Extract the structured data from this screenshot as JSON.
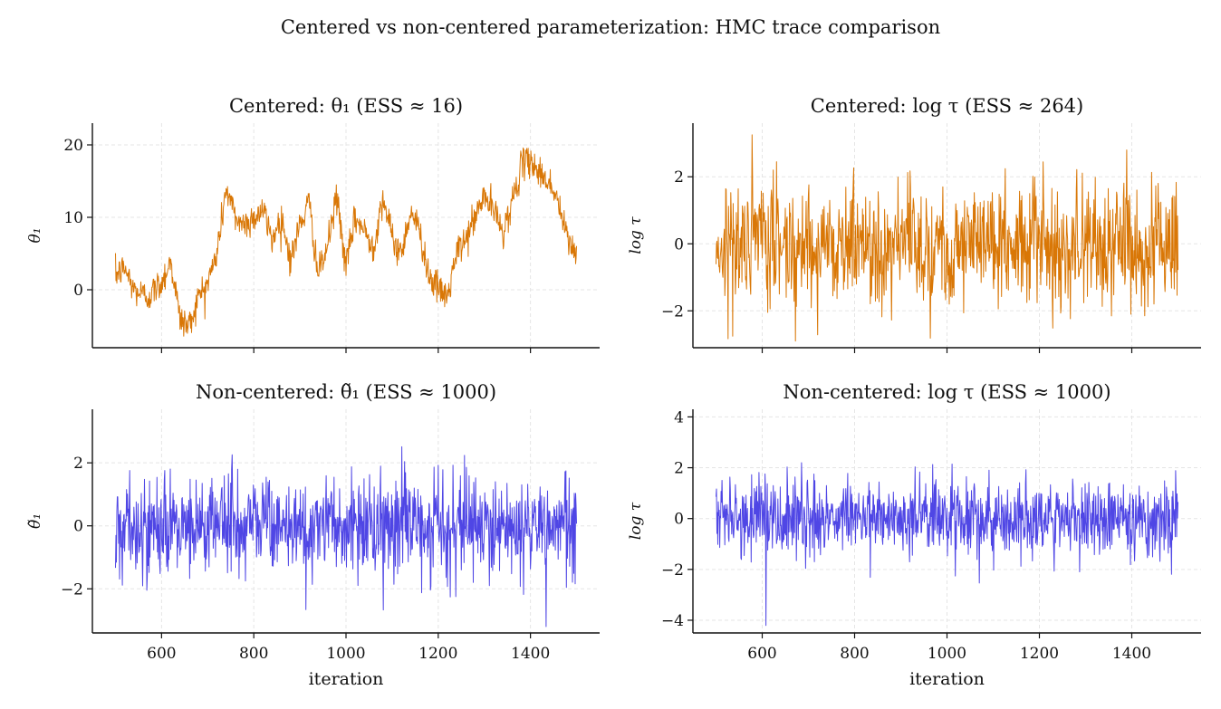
{
  "suptitle": "Centered vs non-centered parameterization: HMC trace comparison",
  "colors": {
    "centered": "#d97706",
    "noncentered": "#4f46e5"
  },
  "chart_data": [
    {
      "type": "line",
      "panel": "top-left",
      "title": "Centered: θ₁   (ESS ≈ 16)",
      "ylabel": "θ₁",
      "xlabel": "",
      "series": [
        {
          "color_key": "centered"
        }
      ],
      "x_range": [
        500,
        1500
      ],
      "xlim": [
        450,
        1550
      ],
      "ylim": [
        -8,
        23
      ],
      "yticks": [
        0,
        10,
        20
      ],
      "ytick_labels": [
        "0",
        "10",
        "20"
      ],
      "xticks": [
        600,
        800,
        1000,
        1200,
        1400
      ],
      "show_xtick_labels": false,
      "grid": true,
      "trace_style": "random-walk",
      "trace_anchors": [
        [
          500,
          2
        ],
        [
          520,
          3
        ],
        [
          540,
          0
        ],
        [
          570,
          -1
        ],
        [
          600,
          1
        ],
        [
          620,
          4
        ],
        [
          640,
          -4
        ],
        [
          660,
          -5
        ],
        [
          680,
          -1
        ],
        [
          700,
          1
        ],
        [
          720,
          5
        ],
        [
          740,
          14
        ],
        [
          760,
          10
        ],
        [
          780,
          9
        ],
        [
          800,
          10
        ],
        [
          820,
          11
        ],
        [
          840,
          7
        ],
        [
          860,
          10
        ],
        [
          880,
          4
        ],
        [
          900,
          9
        ],
        [
          920,
          12
        ],
        [
          940,
          2
        ],
        [
          960,
          6
        ],
        [
          980,
          13
        ],
        [
          1000,
          3
        ],
        [
          1020,
          10
        ],
        [
          1040,
          8
        ],
        [
          1060,
          6
        ],
        [
          1080,
          13
        ],
        [
          1100,
          7
        ],
        [
          1120,
          5
        ],
        [
          1140,
          11
        ],
        [
          1160,
          8
        ],
        [
          1180,
          2
        ],
        [
          1200,
          0
        ],
        [
          1220,
          -1
        ],
        [
          1240,
          5
        ],
        [
          1260,
          7
        ],
        [
          1280,
          10
        ],
        [
          1300,
          13
        ],
        [
          1320,
          11
        ],
        [
          1340,
          8
        ],
        [
          1360,
          12
        ],
        [
          1380,
          17
        ],
        [
          1400,
          18
        ],
        [
          1420,
          16
        ],
        [
          1440,
          15
        ],
        [
          1460,
          12
        ],
        [
          1480,
          7
        ],
        [
          1500,
          5
        ]
      ]
    },
    {
      "type": "line",
      "panel": "top-right",
      "title": "Centered: log τ   (ESS ≈ 264)",
      "ylabel": "log τ",
      "xlabel": "",
      "series": [
        {
          "color_key": "centered"
        }
      ],
      "x_range": [
        500,
        1500
      ],
      "xlim": [
        450,
        1550
      ],
      "ylim": [
        -3.1,
        3.6
      ],
      "yticks": [
        -2,
        0,
        2
      ],
      "ytick_labels": [
        "−2",
        "0",
        "2"
      ],
      "xticks": [
        600,
        800,
        1000,
        1200,
        1400
      ],
      "show_xtick_labels": false,
      "grid": true,
      "trace_style": "noisy",
      "trace_mean": 0,
      "trace_sd": 0.9
    },
    {
      "type": "line",
      "panel": "bottom-left",
      "title": "Non-centered: θ̃₁   (ESS ≈ 1000)",
      "ylabel": "θ̃₁",
      "xlabel": "iteration",
      "series": [
        {
          "color_key": "noncentered"
        }
      ],
      "x_range": [
        500,
        1500
      ],
      "xlim": [
        450,
        1550
      ],
      "ylim": [
        -3.4,
        3.7
      ],
      "yticks": [
        -2,
        0,
        2
      ],
      "ytick_labels": [
        "−2",
        "0",
        "2"
      ],
      "xticks": [
        600,
        800,
        1000,
        1200,
        1400
      ],
      "xtick_labels": [
        "600",
        "800",
        "1000",
        "1200",
        "1400"
      ],
      "show_xtick_labels": true,
      "grid": true,
      "trace_style": "white-noise",
      "trace_mean": 0,
      "trace_sd": 0.8
    },
    {
      "type": "line",
      "panel": "bottom-right",
      "title": "Non-centered: log τ   (ESS ≈ 1000)",
      "ylabel": "log τ",
      "xlabel": "iteration",
      "series": [
        {
          "color_key": "noncentered"
        }
      ],
      "x_range": [
        500,
        1500
      ],
      "xlim": [
        450,
        1550
      ],
      "ylim": [
        -4.5,
        4.3
      ],
      "yticks": [
        -4,
        -2,
        0,
        2,
        4
      ],
      "ytick_labels": [
        "−4",
        "−2",
        "0",
        "2",
        "4"
      ],
      "xticks": [
        600,
        800,
        1000,
        1200,
        1400
      ],
      "xtick_labels": [
        "600",
        "800",
        "1000",
        "1200",
        "1400"
      ],
      "show_xtick_labels": true,
      "grid": true,
      "trace_style": "white-noise",
      "trace_mean": 0,
      "trace_sd": 0.75
    }
  ]
}
